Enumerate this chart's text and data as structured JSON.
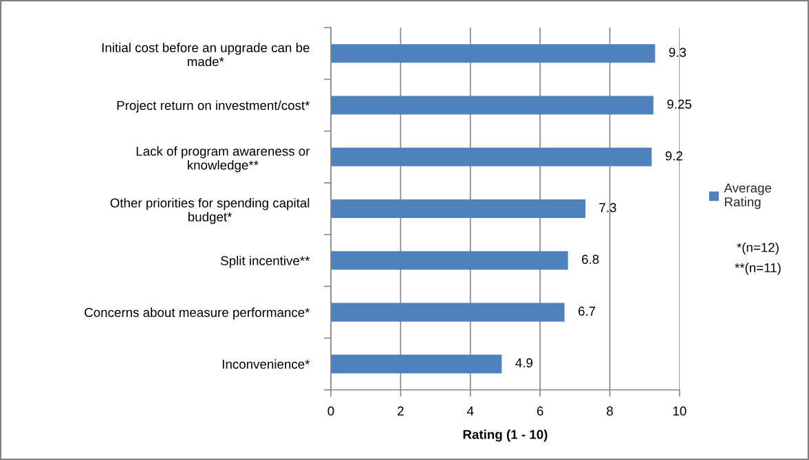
{
  "chart_data": {
    "type": "bar",
    "orientation": "horizontal",
    "xlabel": "Rating (1 - 10)",
    "categories": [
      "Initial cost before an upgrade can be made*",
      "Project return on investment/cost*",
      "Lack of program awareness or knowledge**",
      "Other priorities for spending capital budget*",
      "Split incentive**",
      "Concerns about measure performance*",
      "Inconvenience*"
    ],
    "series": [
      {
        "name": "Average Rating",
        "color": "#4f81bd",
        "values": [
          9.3,
          9.25,
          9.2,
          7.3,
          6.8,
          6.7,
          4.9
        ]
      }
    ],
    "xlim": [
      0,
      10
    ],
    "xticks": [
      0,
      2,
      4,
      6,
      8,
      10
    ],
    "grid": "x",
    "legend": "right",
    "data_labels": true,
    "annotations": [
      "*(n=12)",
      "**(n=11)"
    ]
  }
}
